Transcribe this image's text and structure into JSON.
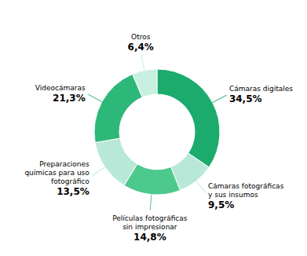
{
  "chart_data": {
    "type": "pie",
    "categories": [
      "Cámaras digitales",
      "Cámaras fotográficas\ny sus insumos",
      "Películas fotográficas\nsin impresionar",
      "Preparaciones\nquímicas para uso\nfotográfico",
      "Videocámaras",
      "Otros"
    ],
    "values": [
      34.5,
      9.5,
      14.8,
      13.5,
      21.3,
      6.4
    ],
    "value_labels": [
      "34,5%",
      "9,5%",
      "14,8%",
      "13,5%",
      "21,3%",
      "6,4%"
    ],
    "colors": [
      "#1aab6d",
      "#b8e8d8",
      "#4dc98e",
      "#b8e8d8",
      "#2db87a",
      "#c8f0e0"
    ]
  }
}
